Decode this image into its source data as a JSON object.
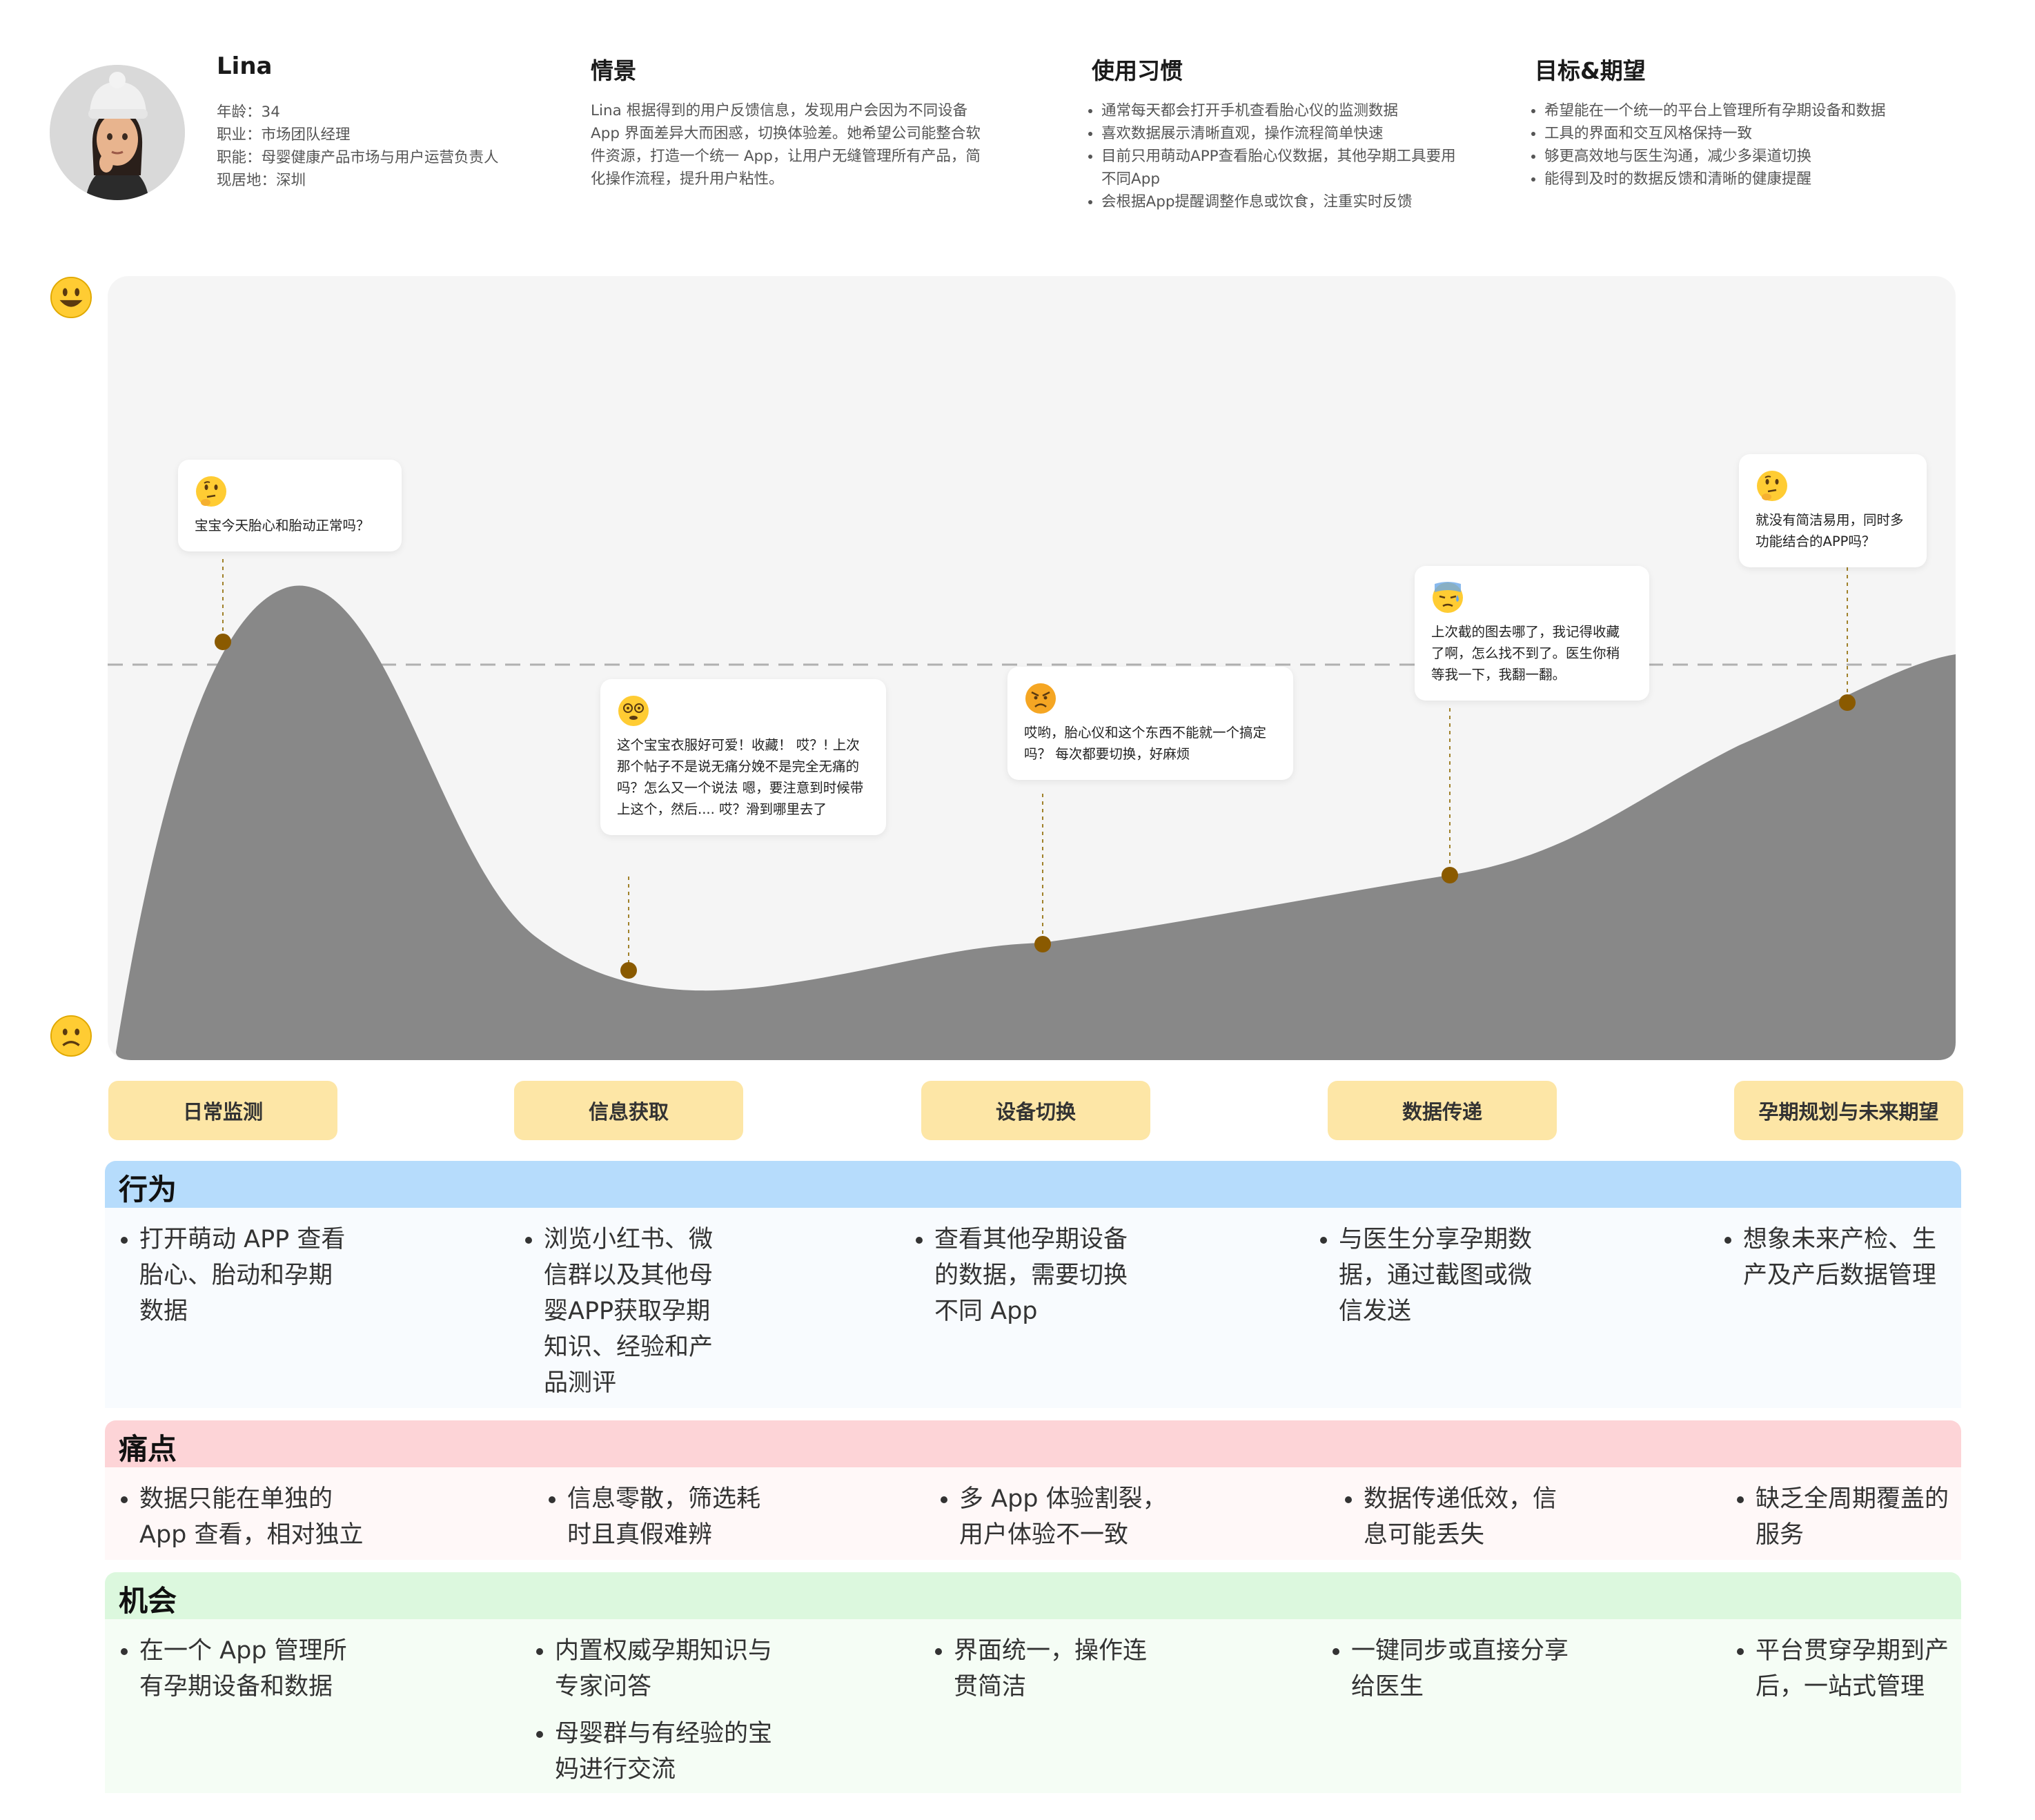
{
  "persona": {
    "name": "Lina",
    "avatar": "memoji-avatar",
    "details": [
      {
        "label": "年龄：",
        "value": "34"
      },
      {
        "label": "职业：",
        "value": "市场团队经理"
      },
      {
        "label": "职能：",
        "value": "母婴健康产品市场与用户运营负责人"
      },
      {
        "label": "现居地：",
        "value": "深圳"
      }
    ]
  },
  "scenario": {
    "title": "情景",
    "text": "Lina 根据得到的用户反馈信息，发现用户会因为不同设备 App 界面差异大而困惑，切换体验差。她希望公司能整合软件资源，打造一个统一 App，让用户无缝管理所有产品，简化操作流程，提升用户粘性。"
  },
  "habits": {
    "title": "使用习惯",
    "items": [
      "通常每天都会打开手机查看胎心仪的监测数据",
      "喜欢数据展示清晰直观，操作流程简单快速",
      "目前只用萌动APP查看胎心仪数据，其他孕期工具要用不同App",
      "会根据App提醒调整作息或饮食，注重实时反馈"
    ]
  },
  "goals": {
    "title": "目标&期望",
    "items": [
      "希望能在一个统一的平台上管理所有孕期设备和数据",
      "工具的界面和交互风格保持一致",
      "够更高效地与医生沟通，减少多渠道切换",
      "能得到及时的数据反馈和清晰的健康提醒"
    ]
  },
  "chart_data": {
    "type": "area",
    "y_scale": [
      "happy",
      "sad"
    ],
    "baseline": "neutral-dashed-line",
    "points": [
      {
        "stage": "日常监测",
        "emoji": "thinking",
        "thought": "宝宝今天胎心和胎动正常吗？"
      },
      {
        "stage": "信息获取",
        "emoji": "dizzy",
        "thought": "这个宝宝衣服好可爱！收藏！ 哎？! 上次那个帖子不是说无痛分娩不是完全无痛的吗？怎么又一个说法 嗯，要注意到时候带上这个，然后.... 哎？滑到哪里去了"
      },
      {
        "stage": "设备切换",
        "emoji": "angry",
        "thought": "哎哟，胎心仪和这个东西不能就一个搞定吗？ 每次都要切换，好麻烦"
      },
      {
        "stage": "数据传递",
        "emoji": "sweat",
        "thought": "上次截的图去哪了，我记得收藏了啊，怎么找不到了。医生你稍等我一下，我翻一翻。"
      },
      {
        "stage": "孕期规划与未来期望",
        "emoji": "thinking",
        "thought": "就没有简洁易用，同时多功能结合的APP吗？"
      }
    ]
  },
  "stages": [
    "日常监测",
    "信息获取",
    "设备切换",
    "数据传递",
    "孕期规划与未来期望"
  ],
  "rows": {
    "behavior": {
      "title": "行为",
      "color": "#b6dcfc",
      "cells": [
        [
          "打开萌动 APP 查看胎心、胎动和孕期数据"
        ],
        [
          "浏览小红书、微信群以及其他母婴APP获取孕期知识、经验和产品测评"
        ],
        [
          "查看其他孕期设备的数据，需要切换不同 App"
        ],
        [
          "与医生分享孕期数据，通过截图或微信发送"
        ],
        [
          "想象未来产检、生产及产后数据管理"
        ]
      ]
    },
    "pain": {
      "title": "痛点",
      "color": "#fdd4d7",
      "cells": [
        [
          "数据只能在单独的 App 查看，相对独立"
        ],
        [
          "信息零散，筛选耗时且真假难辨"
        ],
        [
          "多 App 体验割裂，用户体验不一致"
        ],
        [
          "数据传递低效，信息可能丢失"
        ],
        [
          "缺乏全周期覆盖的服务"
        ]
      ]
    },
    "opportunity": {
      "title": "机会",
      "color": "#dcf8de",
      "cells": [
        [
          "在一个 App 管理所有孕期设备和数据"
        ],
        [
          "内置权威孕期知识与专家问答",
          "母婴群与有经验的宝妈进行交流"
        ],
        [
          "界面统一，操作连贯简洁"
        ],
        [
          "一键同步或直接分享给医生"
        ],
        [
          "平台贯穿孕期到产后，一站式管理"
        ]
      ]
    }
  }
}
